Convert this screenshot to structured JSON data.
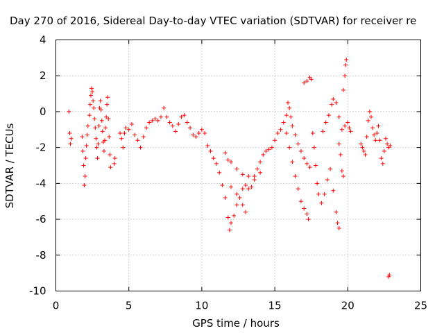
{
  "chart_data": {
    "type": "scatter",
    "title": "Day 270 of 2016, Sidereal Day-to-day VTEC variation (SDTVAR) for receiver re",
    "xlabel": "GPS time / hours",
    "ylabel": "SDTVAR / TECUs",
    "xlim": [
      0,
      25
    ],
    "ylim": [
      -10,
      4
    ],
    "xticks": [
      0,
      5,
      10,
      15,
      20,
      25
    ],
    "xtick_labels": [
      "0",
      "5",
      "10",
      "15",
      "20",
      "25"
    ],
    "yticks": [
      -10,
      -8,
      -6,
      -4,
      -2,
      0,
      2,
      4
    ],
    "ytick_labels": [
      "-10",
      "-8",
      "-6",
      "-4",
      "-2",
      "0",
      "2",
      "4"
    ],
    "grid": true,
    "legend": "none",
    "marker": "plus",
    "color": "#ff0000",
    "series": [
      {
        "points": [
          [
            0.9,
            0.0
          ],
          [
            0.95,
            -1.2
          ],
          [
            1.0,
            -1.8
          ],
          [
            1.05,
            -1.5
          ],
          [
            1.8,
            -1.4
          ],
          [
            1.85,
            -2.2
          ],
          [
            1.9,
            -3.0
          ],
          [
            1.95,
            -4.1
          ],
          [
            2.0,
            -3.6
          ],
          [
            2.05,
            -2.6
          ],
          [
            2.1,
            -1.9
          ],
          [
            2.15,
            -1.3
          ],
          [
            2.2,
            -0.8
          ],
          [
            2.3,
            -0.2
          ],
          [
            2.35,
            0.4
          ],
          [
            2.4,
            0.9
          ],
          [
            2.45,
            1.3
          ],
          [
            2.5,
            1.1
          ],
          [
            2.55,
            0.6
          ],
          [
            2.6,
            0.2
          ],
          [
            2.65,
            -0.4
          ],
          [
            2.7,
            -0.9
          ],
          [
            2.75,
            -1.5
          ],
          [
            2.8,
            -2.0
          ],
          [
            2.85,
            -2.6
          ],
          [
            2.9,
            -1.8
          ],
          [
            2.95,
            -0.8
          ],
          [
            3.0,
            0.2
          ],
          [
            3.05,
            0.6
          ],
          [
            3.1,
            0.1
          ],
          [
            3.15,
            -0.5
          ],
          [
            3.2,
            -1.1
          ],
          [
            3.25,
            -1.7
          ],
          [
            3.3,
            -2.2
          ],
          [
            3.35,
            -1.6
          ],
          [
            3.4,
            -0.9
          ],
          [
            3.45,
            -0.3
          ],
          [
            3.5,
            0.4
          ],
          [
            3.55,
            0.8
          ],
          [
            3.6,
            -0.4
          ],
          [
            3.65,
            -1.4
          ],
          [
            3.7,
            -2.4
          ],
          [
            3.75,
            -3.1
          ],
          [
            4.0,
            -2.9
          ],
          [
            4.05,
            -2.6
          ],
          [
            4.4,
            -1.2
          ],
          [
            4.5,
            -1.5
          ],
          [
            4.6,
            -2.0
          ],
          [
            4.7,
            -1.2
          ],
          [
            4.8,
            -0.9
          ],
          [
            5.0,
            -1.0
          ],
          [
            5.2,
            -0.7
          ],
          [
            5.4,
            -1.3
          ],
          [
            5.6,
            -1.6
          ],
          [
            5.8,
            -2.0
          ],
          [
            6.0,
            -1.4
          ],
          [
            6.2,
            -0.9
          ],
          [
            6.4,
            -0.6
          ],
          [
            6.6,
            -0.5
          ],
          [
            6.8,
            -0.4
          ],
          [
            7.0,
            -0.5
          ],
          [
            7.2,
            -0.3
          ],
          [
            7.4,
            0.2
          ],
          [
            7.6,
            -0.3
          ],
          [
            7.8,
            -0.6
          ],
          [
            8.0,
            -0.8
          ],
          [
            8.2,
            -1.1
          ],
          [
            8.4,
            -0.7
          ],
          [
            8.6,
            -0.3
          ],
          [
            8.8,
            -0.2
          ],
          [
            9.0,
            -0.6
          ],
          [
            9.2,
            -0.9
          ],
          [
            9.4,
            -1.3
          ],
          [
            9.6,
            -1.4
          ],
          [
            9.8,
            -1.2
          ],
          [
            10.0,
            -1.0
          ],
          [
            10.2,
            -1.2
          ],
          [
            10.4,
            -1.9
          ],
          [
            10.6,
            -2.2
          ],
          [
            10.8,
            -2.6
          ],
          [
            11.0,
            -2.9
          ],
          [
            11.2,
            -3.4
          ],
          [
            11.4,
            -4.1
          ],
          [
            11.6,
            -4.8
          ],
          [
            11.8,
            -5.9
          ],
          [
            11.9,
            -6.6
          ],
          [
            12.0,
            -6.2
          ],
          [
            12.2,
            -5.8
          ],
          [
            12.4,
            -5.2
          ],
          [
            12.6,
            -4.8
          ],
          [
            12.8,
            -4.3
          ],
          [
            13.0,
            -4.1
          ],
          [
            13.2,
            -4.3
          ],
          [
            13.4,
            -4.2
          ],
          [
            13.6,
            -3.8
          ],
          [
            13.8,
            -3.2
          ],
          [
            14.0,
            -2.8
          ],
          [
            14.2,
            -2.4
          ],
          [
            14.4,
            -2.2
          ],
          [
            14.6,
            -2.1
          ],
          [
            11.6,
            -2.3
          ],
          [
            11.8,
            -2.7
          ],
          [
            12.0,
            -2.8
          ],
          [
            12.4,
            -3.2
          ],
          [
            12.8,
            -3.5
          ],
          [
            13.2,
            -3.6
          ],
          [
            13.6,
            -3.6
          ],
          [
            14.0,
            -3.4
          ],
          [
            12.0,
            -4.2
          ],
          [
            12.4,
            -4.6
          ],
          [
            12.8,
            -5.2
          ],
          [
            13.0,
            -5.6
          ],
          [
            14.8,
            -2.0
          ],
          [
            15.0,
            -1.6
          ],
          [
            15.2,
            -1.2
          ],
          [
            15.4,
            -1.0
          ],
          [
            15.6,
            -0.6
          ],
          [
            15.8,
            -0.2
          ],
          [
            15.9,
            0.5
          ],
          [
            16.0,
            0.2
          ],
          [
            16.1,
            -0.3
          ],
          [
            16.2,
            -0.8
          ],
          [
            16.4,
            -1.3
          ],
          [
            16.6,
            -1.8
          ],
          [
            16.8,
            -2.2
          ],
          [
            17.0,
            -2.6
          ],
          [
            17.2,
            -2.9
          ],
          [
            17.4,
            -3.1
          ],
          [
            15.8,
            -1.2
          ],
          [
            16.0,
            -2.0
          ],
          [
            16.2,
            -2.8
          ],
          [
            16.4,
            -3.6
          ],
          [
            16.6,
            -4.3
          ],
          [
            16.8,
            -5.0
          ],
          [
            17.0,
            -5.4
          ],
          [
            17.2,
            -5.7
          ],
          [
            17.3,
            -6.0
          ],
          [
            17.0,
            1.6
          ],
          [
            17.2,
            1.7
          ],
          [
            17.4,
            1.9
          ],
          [
            17.5,
            1.8
          ],
          [
            17.6,
            -1.2
          ],
          [
            17.7,
            -2.0
          ],
          [
            17.8,
            -3.0
          ],
          [
            17.9,
            -4.0
          ],
          [
            18.0,
            -4.6
          ],
          [
            18.2,
            -5.1
          ],
          [
            18.4,
            -4.6
          ],
          [
            18.6,
            -3.8
          ],
          [
            18.8,
            -3.2
          ],
          [
            19.0,
            -4.4
          ],
          [
            19.2,
            -5.6
          ],
          [
            19.3,
            -6.2
          ],
          [
            19.4,
            -6.5
          ],
          [
            18.3,
            -1.1
          ],
          [
            18.5,
            -0.6
          ],
          [
            18.7,
            -0.2
          ],
          [
            18.9,
            0.4
          ],
          [
            19.0,
            0.7
          ],
          [
            19.2,
            0.5
          ],
          [
            19.4,
            -0.3
          ],
          [
            19.6,
            -1.0
          ],
          [
            19.8,
            -0.8
          ],
          [
            19.4,
            -1.8
          ],
          [
            19.5,
            -2.4
          ],
          [
            19.6,
            -3.3
          ],
          [
            19.7,
            -3.6
          ],
          [
            19.7,
            1.2
          ],
          [
            19.8,
            2.0
          ],
          [
            19.85,
            2.6
          ],
          [
            19.9,
            2.9
          ],
          [
            20.0,
            -0.6
          ],
          [
            20.1,
            -0.9
          ],
          [
            20.2,
            -1.1
          ],
          [
            20.9,
            -1.8
          ],
          [
            21.0,
            -2.0
          ],
          [
            21.1,
            -2.2
          ],
          [
            21.2,
            -2.4
          ],
          [
            21.3,
            -1.4
          ],
          [
            21.4,
            -0.5
          ],
          [
            21.5,
            0.0
          ],
          [
            21.6,
            -0.3
          ],
          [
            21.7,
            -0.9
          ],
          [
            21.8,
            -1.3
          ],
          [
            21.9,
            -1.6
          ],
          [
            22.0,
            -1.2
          ],
          [
            22.1,
            -0.8
          ],
          [
            22.2,
            -1.6
          ],
          [
            22.3,
            -2.6
          ],
          [
            22.4,
            -2.9
          ],
          [
            22.5,
            -2.2
          ],
          [
            22.6,
            -1.5
          ],
          [
            22.7,
            -1.8
          ],
          [
            22.8,
            -2.0
          ],
          [
            22.9,
            -1.9
          ],
          [
            22.8,
            -9.2
          ],
          [
            22.85,
            -9.1
          ]
        ]
      }
    ]
  }
}
